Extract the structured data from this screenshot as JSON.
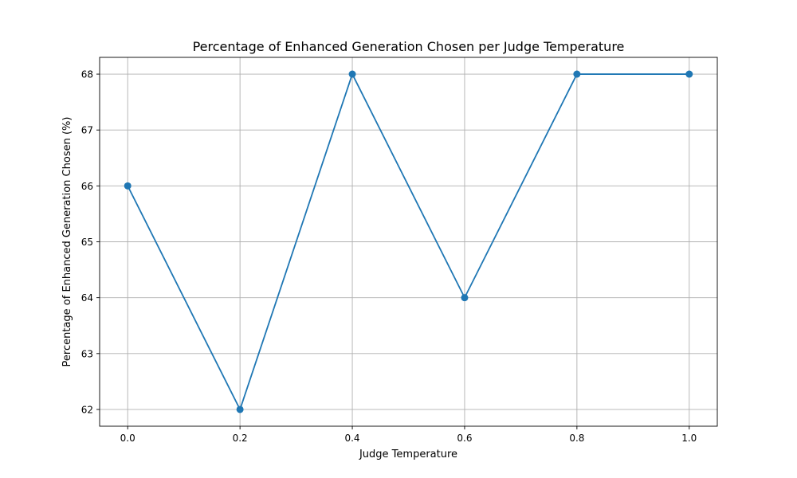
{
  "chart_data": {
    "type": "line",
    "title": "Percentage of Enhanced Generation Chosen per Judge Temperature",
    "xlabel": "Judge Temperature",
    "ylabel": "Percentage of Enhanced Generation Chosen (%)",
    "x": [
      0.0,
      0.2,
      0.4,
      0.6,
      0.8,
      1.0
    ],
    "series": [
      {
        "values": [
          66,
          62,
          68,
          64,
          68,
          68
        ],
        "color": "#1f77b4",
        "marker": "circle"
      }
    ],
    "xlim": [
      -0.05,
      1.05
    ],
    "ylim": [
      61.7,
      68.3
    ],
    "xticks": [
      0.0,
      0.2,
      0.4,
      0.6,
      0.8,
      1.0
    ],
    "xtick_labels": [
      "0.0",
      "0.2",
      "0.4",
      "0.6",
      "0.8",
      "1.0"
    ],
    "yticks": [
      62,
      63,
      64,
      65,
      66,
      67,
      68
    ],
    "ytick_labels": [
      "62",
      "63",
      "64",
      "65",
      "66",
      "67",
      "68"
    ],
    "grid": true,
    "legend": false
  }
}
